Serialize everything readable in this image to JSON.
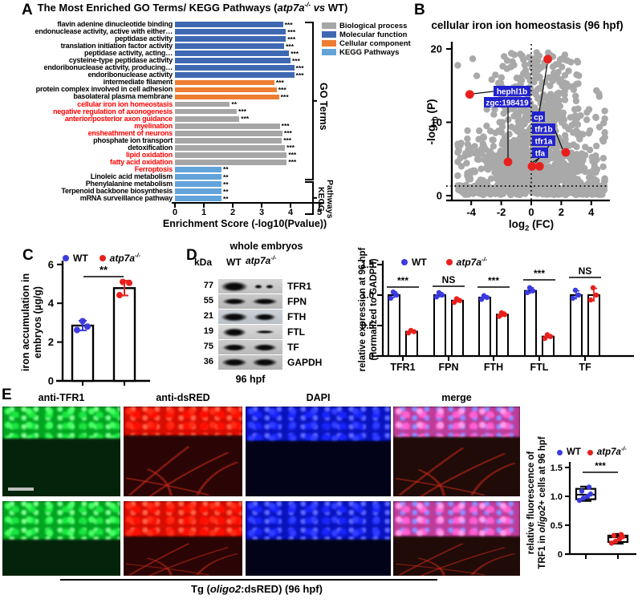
{
  "wt": "WT",
  "mutant": {
    "gene": "atp7a",
    "sup": "-/-"
  },
  "colors": {
    "wt_dot": "#3B3BDF",
    "mut_dot": "#E8201D",
    "bar_bp": "#A6A6A6",
    "bar_mf": "#3E68B2",
    "bar_cc": "#ED7D31",
    "bar_kegg": "#62A3DA",
    "volcano_dot": "#A9A9A9",
    "volcano_red": "#E8201D",
    "gene_label_bg": "#2121CE",
    "red_text": "#FF0000",
    "channels": {
      "tfr1": {
        "base": "#04230b",
        "band": "#0e9e2a",
        "blobs": [
          "#5aff74",
          "#2de04e",
          "#93ff9f"
        ]
      },
      "dsred": {
        "base": "#2b0505",
        "band": "#c11208",
        "blobs": [
          "#ff3520",
          "#ff150a",
          "#ff7058"
        ]
      },
      "dapi": {
        "base": "#020218",
        "band": "#0b13a8",
        "blobs": [
          "#3642ff",
          "#1b26e8",
          "#6670ff"
        ]
      },
      "merge": {
        "base": "#200b08",
        "band": "#b04090",
        "blobs": [
          "#ffa2e8",
          "#ff66cc",
          "#8a96ff"
        ]
      }
    }
  },
  "A": {
    "letter": "A",
    "title_prefix": "The Most Enriched GO Terms/ KEGG Pathways (",
    "title_vs": "vs",
    "title_suffix": " WT)",
    "go_label": "GO Terms",
    "kegg_label": "KEGG Pathways",
    "legend": [
      {
        "label": "Biological process",
        "key": "bp"
      },
      {
        "label": "Molecular function",
        "key": "mf"
      },
      {
        "label": "Cellular component",
        "key": "cc"
      },
      {
        "label": "KEGG Pathways",
        "key": "kegg"
      }
    ]
  },
  "B": {
    "letter": "B"
  },
  "C": {
    "letter": "C"
  },
  "D": {
    "letter": "D",
    "blot": {
      "title": "whole embryos",
      "kda_header": "kDa",
      "wt_lane": "WT",
      "time": "96 hpf",
      "rows": [
        {
          "kda": "77",
          "name": "TFR1"
        },
        {
          "kda": "55",
          "name": "FPN"
        },
        {
          "kda": "21",
          "name": "FTH"
        },
        {
          "kda": "19",
          "name": "FTL"
        },
        {
          "kda": "75",
          "name": "TF"
        },
        {
          "kda": "36",
          "name": "GAPDH"
        }
      ]
    }
  },
  "E": {
    "letter": "E",
    "headers": [
      "anti-TFR1",
      "anti-dsRED",
      "DAPI",
      "merge"
    ],
    "caption_pre": "Tg (",
    "caption_gene": "oligo2",
    "caption_post": ":dsRED) (96 hpf)"
  },
  "chart_data": [
    {
      "id": "A",
      "type": "bar",
      "orientation": "horizontal",
      "title": "The Most Enriched GO Terms/ KEGG Pathways (atp7a-/- vs WT)",
      "xlabel": "Enrichment Score (-log10(Pvalue))",
      "xlim": [
        0,
        5
      ],
      "x_ticks": [
        "0",
        "1",
        "2",
        "3",
        "4",
        "5"
      ],
      "legend_position": "top-right",
      "categories": [
        "flavin adenine dinucleotide binding",
        "endonuclease activity, active with either…",
        "peptidase activity",
        "translation initiation factor activity",
        "peptidase activity, acting…",
        "cysteine-type peptidase activity",
        "endoribonuclease activity, producing…",
        "endoribonuclease activity",
        "intermediate filament",
        "protein complex involved in cell adhesion",
        "basolateral plasma membrane",
        "cellular iron ion homeostasis",
        "negative regulation of axonogenesis",
        "anterior/posterior axon guidance",
        "myelination",
        "ensheathment of neurons",
        "phosphate ion transport",
        "detoxification",
        "lipid oxidation",
        "fatty acid oxidation",
        "Ferroptosis",
        "Linoleic acid metabolism",
        "Phenylalanine metabolism",
        "Terpenoid backbone biosynthesis",
        "mRNA surveillance pathway"
      ],
      "values": [
        3.74,
        3.84,
        3.84,
        3.78,
        3.95,
        4.0,
        4.13,
        4.13,
        3.44,
        3.52,
        3.6,
        1.9,
        2.14,
        2.23,
        3.63,
        3.72,
        3.7,
        3.81,
        3.87,
        3.87,
        1.61,
        1.61,
        1.61,
        1.61,
        1.61
      ],
      "stars": [
        "***",
        "***",
        "***",
        "***",
        "***",
        "***",
        "***",
        "***",
        "***",
        "***",
        "***",
        "**",
        "***",
        "***",
        "***",
        "***",
        "***",
        "***",
        "***",
        "***",
        "**",
        "**",
        "**",
        "**",
        "**"
      ],
      "cats": [
        "mf",
        "mf",
        "mf",
        "mf",
        "mf",
        "mf",
        "mf",
        "mf",
        "cc",
        "cc",
        "cc",
        "bp",
        "bp",
        "bp",
        "bp",
        "bp",
        "bp",
        "bp",
        "bp",
        "bp",
        "kegg",
        "kegg",
        "kegg",
        "kegg",
        "kegg"
      ],
      "red": [
        false,
        false,
        false,
        false,
        false,
        false,
        false,
        false,
        false,
        false,
        false,
        true,
        true,
        true,
        true,
        true,
        false,
        false,
        true,
        true,
        true,
        false,
        false,
        false,
        false
      ]
    },
    {
      "id": "B",
      "type": "scatter",
      "title": "cellular iron ion homeostasis (96 hpf)",
      "ylabel_parts": {
        "pre": "-log",
        "sub": "10",
        "post": " (P)"
      },
      "xlabel_parts": {
        "pre": "log",
        "sub": "2",
        "post": " (FC)"
      },
      "xlim": [
        -5.2,
        5.2
      ],
      "ylim": [
        0,
        20
      ],
      "x_ticks": [
        "-4",
        "-2",
        "0",
        "2",
        "4"
      ],
      "y_ticks": [
        "0",
        "10",
        "20"
      ],
      "vline_x": 0,
      "hline_y": 1.3,
      "background_points": "dense gray cloud of unlabeled transcripts (rendered procedurally)",
      "highlighted": [
        {
          "gene": "hephl1b",
          "x": -4.1,
          "y": 13.8
        },
        {
          "gene": "zgc:198419",
          "x": -1.55,
          "y": 4.6
        },
        {
          "gene": "cp",
          "x": 1.1,
          "y": 18.6
        },
        {
          "gene": "tfr1b",
          "x": 2.3,
          "y": 5.9
        },
        {
          "gene": "tfr1a",
          "x": 0.05,
          "y": 4.0
        },
        {
          "gene": "tfa",
          "x": 0.55,
          "y": 4.0
        }
      ]
    },
    {
      "id": "C",
      "type": "bar",
      "ylabel_line1": "iron accumulation in",
      "ylabel_line2": "embryos (µg/g)",
      "ylim": [
        0,
        6
      ],
      "y_ticks": [
        "0",
        "2",
        "4",
        "6"
      ],
      "categories": [
        "WT",
        "atp7a-/-"
      ],
      "values": [
        2.85,
        4.78
      ],
      "errors": [
        0.25,
        0.38
      ],
      "points": [
        [
          2.62,
          2.8,
          3.08
        ],
        [
          4.42,
          5.05,
          5.1
        ]
      ],
      "sig": "**"
    },
    {
      "id": "D",
      "type": "bar",
      "ylabel_line1": "relative expression at 96 hpf",
      "ylabel_line2": "(normalized to GADPH)",
      "ylim": [
        0,
        1.5
      ],
      "y_ticks": [
        "0",
        "0.5",
        "1.0",
        "1.5"
      ],
      "categories": [
        "TFR1",
        "FPN",
        "FTH",
        "FTL",
        "TF"
      ],
      "series": [
        {
          "name": "WT",
          "values": [
            1.0,
            1.0,
            0.96,
            1.07,
            1.0
          ],
          "errors": [
            0.05,
            0.04,
            0.03,
            0.05,
            0.07
          ],
          "points": [
            [
              0.95,
              1.0,
              1.05
            ],
            [
              0.97,
              1.0,
              1.04
            ],
            [
              0.93,
              0.96,
              0.99
            ],
            [
              1.04,
              1.07,
              1.12
            ],
            [
              0.95,
              1.0,
              1.08
            ]
          ]
        },
        {
          "name": "atp7a-/-",
          "values": [
            0.4,
            0.91,
            0.68,
            0.32,
            1.0
          ],
          "errors": [
            0.02,
            0.03,
            0.04,
            0.03,
            0.11
          ],
          "points": [
            [
              0.38,
              0.4,
              0.42
            ],
            [
              0.88,
              0.91,
              0.94
            ],
            [
              0.65,
              0.68,
              0.71
            ],
            [
              0.29,
              0.32,
              0.35
            ],
            [
              0.92,
              1.0,
              1.12
            ]
          ]
        }
      ],
      "sig": [
        "***",
        "NS",
        "***",
        "***",
        "NS"
      ]
    },
    {
      "id": "E",
      "type": "box",
      "ylabel_line1": "relative fluorescence of",
      "ylabel_line2_pre": "TRF1 in ",
      "ylabel_gene": "oligo2",
      "ylabel_line2_post": "+ cells at 96 hpf",
      "ylim": [
        0,
        1.5
      ],
      "y_ticks": [
        "0",
        "0.5",
        "1.0",
        "1.5"
      ],
      "categories": [
        "WT",
        "atp7a-/-"
      ],
      "boxes": [
        {
          "lo": 0.92,
          "q1": 0.95,
          "med": 1.03,
          "q3": 1.13,
          "hi": 1.17
        },
        {
          "lo": 0.18,
          "q1": 0.21,
          "med": 0.29,
          "q3": 0.32,
          "hi": 0.35
        }
      ],
      "points": [
        [
          0.93,
          0.97,
          1.0,
          1.04,
          1.09,
          1.16
        ],
        [
          0.19,
          0.22,
          0.26,
          0.3,
          0.32,
          0.34
        ]
      ],
      "sig": "***"
    }
  ]
}
